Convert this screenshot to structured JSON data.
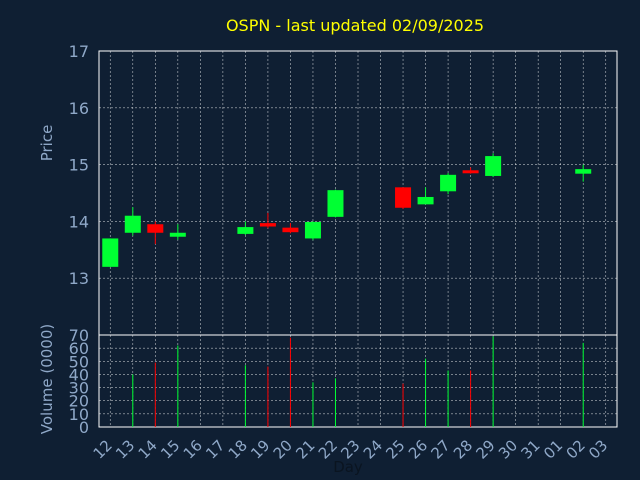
{
  "chart_data": [
    {
      "type": "candlestick",
      "title": "OSPN - last updated 02/09/2025",
      "ylabel": "Price",
      "ylim": [
        12,
        17
      ],
      "yticks": [
        12,
        13,
        14,
        15,
        16,
        17
      ],
      "grid": true,
      "categories": [
        "12",
        "13",
        "14",
        "15",
        "16",
        "17",
        "18",
        "19",
        "20",
        "21",
        "22",
        "23",
        "24",
        "25",
        "26",
        "27",
        "28",
        "29",
        "30",
        "31",
        "01",
        "02",
        "03"
      ],
      "candles": [
        {
          "day": "12",
          "open": 13.2,
          "close": 13.7,
          "high": 13.7,
          "low": 13.2
        },
        {
          "day": "13",
          "open": 13.8,
          "close": 14.1,
          "high": 14.25,
          "low": 13.75
        },
        {
          "day": "14",
          "open": 13.95,
          "close": 13.8,
          "high": 14.0,
          "low": 13.6
        },
        {
          "day": "15",
          "open": 13.73,
          "close": 13.8,
          "high": 13.95,
          "low": 13.68
        },
        {
          "day": "18",
          "open": 13.78,
          "close": 13.9,
          "high": 14.0,
          "low": 13.76
        },
        {
          "day": "19",
          "open": 13.97,
          "close": 13.91,
          "high": 14.15,
          "low": 13.88
        },
        {
          "day": "20",
          "open": 13.89,
          "close": 13.81,
          "high": 13.97,
          "low": 13.79
        },
        {
          "day": "21",
          "open": 13.7,
          "close": 13.99,
          "high": 14.0,
          "low": 13.67
        },
        {
          "day": "22",
          "open": 14.08,
          "close": 14.55,
          "high": 14.56,
          "low": 14.07
        },
        {
          "day": "25",
          "open": 14.6,
          "close": 14.24,
          "high": 14.6,
          "low": 14.22
        },
        {
          "day": "26",
          "open": 14.3,
          "close": 14.43,
          "high": 14.6,
          "low": 14.3
        },
        {
          "day": "27",
          "open": 14.53,
          "close": 14.82,
          "high": 14.85,
          "low": 14.48
        },
        {
          "day": "28",
          "open": 14.9,
          "close": 14.86,
          "high": 14.95,
          "low": 14.84
        },
        {
          "day": "29",
          "open": 14.8,
          "close": 15.15,
          "high": 15.2,
          "low": 14.78
        },
        {
          "day": "02",
          "open": 14.84,
          "close": 14.92,
          "high": 15.0,
          "low": 14.7
        }
      ],
      "up_color": "#00ff33",
      "down_color": "#ff0000"
    },
    {
      "type": "bar",
      "xlabel": "Day",
      "ylabel": "Volume (0000)",
      "ylim": [
        0,
        70
      ],
      "yticks": [
        0,
        10,
        20,
        30,
        40,
        50,
        60,
        70
      ],
      "grid": true,
      "categories": [
        "12",
        "13",
        "14",
        "15",
        "16",
        "17",
        "18",
        "19",
        "20",
        "21",
        "22",
        "23",
        "24",
        "25",
        "26",
        "27",
        "28",
        "29",
        "30",
        "31",
        "01",
        "02",
        "03"
      ],
      "volumes": [
        {
          "day": "13",
          "value": 40,
          "direction": "up"
        },
        {
          "day": "14",
          "value": 49,
          "direction": "down"
        },
        {
          "day": "15",
          "value": 62,
          "direction": "up"
        },
        {
          "day": "18",
          "value": 47,
          "direction": "up"
        },
        {
          "day": "19",
          "value": 46,
          "direction": "down"
        },
        {
          "day": "20",
          "value": 68,
          "direction": "down"
        },
        {
          "day": "21",
          "value": 34,
          "direction": "up"
        },
        {
          "day": "22",
          "value": 37,
          "direction": "up"
        },
        {
          "day": "25",
          "value": 33,
          "direction": "down"
        },
        {
          "day": "26",
          "value": 52,
          "direction": "up"
        },
        {
          "day": "27",
          "value": 43,
          "direction": "up"
        },
        {
          "day": "28",
          "value": 43,
          "direction": "down"
        },
        {
          "day": "29",
          "value": 69,
          "direction": "up"
        },
        {
          "day": "02",
          "value": 64,
          "direction": "up"
        }
      ]
    }
  ],
  "colors": {
    "background": "#0f1f33",
    "plot_background": "#0f1f33",
    "axis_text": "#8fa8c8",
    "grid": "#ffffff",
    "title": "#ffff00",
    "frame": "#ffffff"
  }
}
